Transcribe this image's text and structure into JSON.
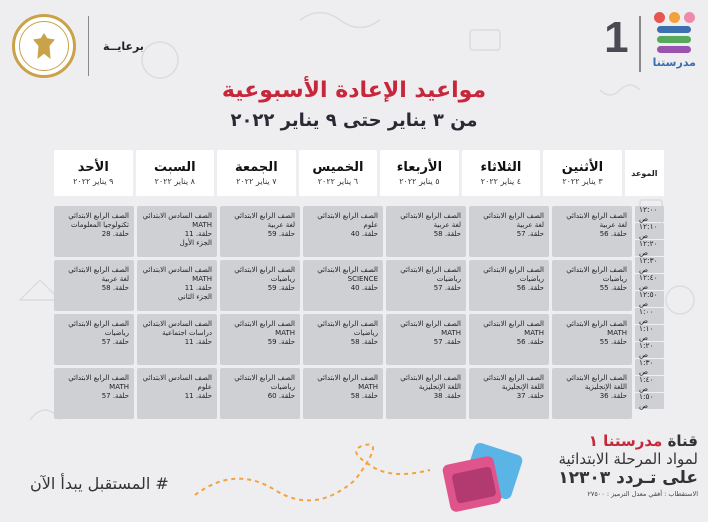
{
  "header": {
    "sponsor_label": "برعايــة",
    "brand_number": "1",
    "brand_name": "مدرستنا"
  },
  "colors": {
    "title_red": "#c8263a",
    "cell_grey": "#cfd0d4",
    "brand_dot_1": "#e8544e",
    "brand_dot_2": "#f1a23a",
    "brand_dot_3": "#f08aa9",
    "brand_bar_1": "#3a6fb0",
    "brand_bar_2": "#56a85a",
    "brand_bar_3": "#9a54b0"
  },
  "title": "مواعيد الإعادة الأسبوعية",
  "subtitle": "من ٣ يناير حتى ٩ يناير ٢٠٢٢",
  "time_header": "الموعد",
  "days": [
    {
      "name": "الأثنين",
      "date": "٣ يناير ٢٠٢٢"
    },
    {
      "name": "الثلاثاء",
      "date": "٤ يناير ٢٠٢٢"
    },
    {
      "name": "الأربعاء",
      "date": "٥ يناير ٢٠٢٢"
    },
    {
      "name": "الخميس",
      "date": "٦ يناير ٢٠٢٢"
    },
    {
      "name": "الجمعة",
      "date": "٧ يناير ٢٠٢٢"
    },
    {
      "name": "السبت",
      "date": "٨ يناير ٢٠٢٢"
    },
    {
      "name": "الأحد",
      "date": "٩ يناير ٢٠٢٢"
    }
  ],
  "times": [
    "١٢:٠٠ ص",
    "١٢:١٠ ص",
    "١٢:٢٠ ص",
    "١٢:٣٠ ص",
    "١٢:٤٠ ص",
    "١٢:٥٠ ص",
    "١:٠٠ ص",
    "١:١٠ ص",
    "١:٢٠ ص",
    "١:٣٠ ص",
    "١:٤٠ ص",
    "١:٥٠ ص"
  ],
  "rows": [
    [
      [
        "الصف الرابع الابتدائي",
        "لغة عربية",
        "حلقة. 56"
      ],
      [
        "الصف الرابع الابتدائي",
        "لغة عربية",
        "حلقة. 57"
      ],
      [
        "الصف الرابع الابتدائي",
        "لغة عربية",
        "حلقة. 58"
      ],
      [
        "الصف الرابع الابتدائي",
        "علوم",
        "حلقة. 40"
      ],
      [
        "الصف الرابع الابتدائي",
        "لغة عربية",
        "حلقة. 59"
      ],
      [
        "الصف السادس الابتدائي",
        "MATH",
        "حلقة. 11",
        "الجزء الأول"
      ],
      [
        "الصف الرابع الابتدائي",
        "تكنولوجيا المعلومات",
        "حلقة. 28"
      ]
    ],
    [
      [
        "الصف الرابع الابتدائي",
        "رياضيات",
        "حلقة. 55"
      ],
      [
        "الصف الرابع الابتدائي",
        "رياضيات",
        "حلقة. 56"
      ],
      [
        "الصف الرابع الابتدائي",
        "رياضيات",
        "حلقة. 57"
      ],
      [
        "الصف الرابع الابتدائي",
        "SCIENCE",
        "حلقة. 40"
      ],
      [
        "الصف الرابع الابتدائي",
        "رياضيات",
        "حلقة. 59"
      ],
      [
        "الصف السادس الابتدائي",
        "MATH",
        "حلقة. 11",
        "الجزء الثاني"
      ],
      [
        "الصف الرابع الابتدائي",
        "لغة عربية",
        "حلقة. 58"
      ]
    ],
    [
      [
        "الصف الرابع الابتدائي",
        "MATH",
        "حلقة. 55"
      ],
      [
        "الصف الرابع الابتدائي",
        "MATH",
        "حلقة. 56"
      ],
      [
        "الصف الرابع الابتدائي",
        "MATH",
        "حلقة. 57"
      ],
      [
        "الصف الرابع الابتدائي",
        "رياضيات",
        "حلقة. 58"
      ],
      [
        "الصف الرابع الابتدائي",
        "MATH",
        "حلقة. 59"
      ],
      [
        "الصف السادس الابتدائي",
        "دراسات اجتماعية",
        "حلقة. 11"
      ],
      [
        "الصف الرابع الابتدائي",
        "رياضيات",
        "حلقة. 57"
      ]
    ],
    [
      [
        "الصف الرابع الابتدائي",
        "اللغة الإنجليزية",
        "حلقة. 36"
      ],
      [
        "الصف الرابع الابتدائي",
        "اللغة الإنجليزية",
        "حلقة. 37"
      ],
      [
        "الصف الرابع الابتدائي",
        "اللغة الإنجليزية",
        "حلقة. 38"
      ],
      [
        "الصف الرابع الابتدائي",
        "MATH",
        "حلقة. 58"
      ],
      [
        "الصف الرابع الابتدائي",
        "رياضيات",
        "حلقة. 60"
      ],
      [
        "الصف السادس الابتدائي",
        "علوم",
        "حلقة. 11"
      ],
      [
        "الصف الرابع الابتدائي",
        "MATH",
        "حلقة. 57"
      ]
    ]
  ],
  "footer": {
    "slogan": "# المستقبل يبدأ الآن",
    "channel_word": "قناة",
    "channel_name": "مدرستنا ١",
    "channel_line2": "لمواد المرحلة الابتدائية",
    "channel_line3": "على تـردد ١٢٣٠٣",
    "channel_line4": "الاستقطاب : أفقي معدل الترميز : ٢٧٥٠٠"
  }
}
